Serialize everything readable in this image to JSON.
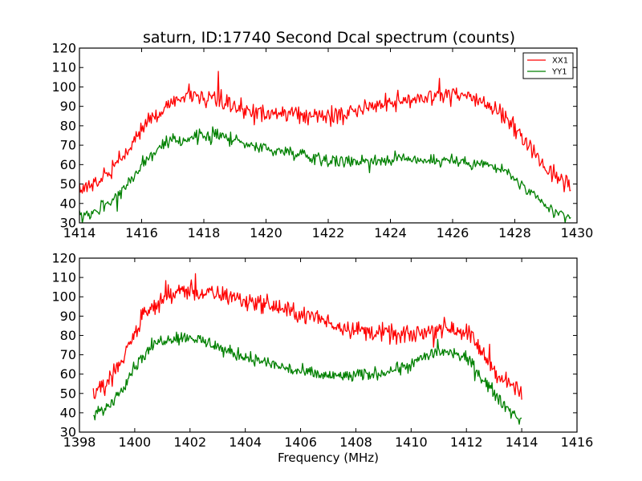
{
  "figure": {
    "title": "saturn, ID:17740 Second Dcal spectrum (counts)"
  },
  "chart_data": [
    {
      "type": "line",
      "title": "saturn, ID:17740 Second Dcal spectrum (counts)",
      "xlabel": "",
      "ylabel": "",
      "xlim": [
        1414,
        1430
      ],
      "ylim": [
        30,
        120
      ],
      "xticks": [
        1414,
        1416,
        1418,
        1420,
        1422,
        1424,
        1426,
        1428,
        1430
      ],
      "yticks": [
        30,
        40,
        50,
        60,
        70,
        80,
        90,
        100,
        110,
        120
      ],
      "legend": {
        "position": "top-right",
        "entries": [
          "XX1",
          "YY1"
        ]
      },
      "grid": false,
      "series": [
        {
          "name": "XX1",
          "color": "#ff0000",
          "x": [
            1414.0,
            1414.5,
            1415.0,
            1415.5,
            1416.0,
            1416.5,
            1417.0,
            1417.5,
            1418.0,
            1418.5,
            1419.0,
            1419.5,
            1420.0,
            1420.5,
            1421.0,
            1421.5,
            1422.0,
            1422.5,
            1423.0,
            1423.5,
            1424.0,
            1424.5,
            1425.0,
            1425.5,
            1426.0,
            1426.5,
            1427.0,
            1427.5,
            1428.0,
            1428.5,
            1429.0,
            1429.5,
            1429.8
          ],
          "y": [
            49,
            51,
            57,
            66,
            78,
            87,
            93,
            96,
            95,
            93,
            90,
            88,
            87,
            86,
            85,
            85,
            84,
            86,
            88,
            91,
            93,
            94,
            94,
            95,
            96,
            95,
            92,
            88,
            79,
            68,
            59,
            52,
            50
          ]
        },
        {
          "name": "YY1",
          "color": "#008000",
          "x": [
            1414.0,
            1414.5,
            1415.0,
            1415.5,
            1416.0,
            1416.5,
            1417.0,
            1417.5,
            1418.0,
            1418.5,
            1419.0,
            1419.5,
            1420.0,
            1420.5,
            1421.0,
            1421.5,
            1422.0,
            1422.5,
            1423.0,
            1423.5,
            1424.0,
            1424.5,
            1425.0,
            1425.5,
            1426.0,
            1426.5,
            1427.0,
            1427.5,
            1428.0,
            1428.5,
            1429.0,
            1429.5,
            1429.8
          ],
          "y": [
            34,
            36,
            41,
            49,
            60,
            68,
            72,
            74,
            75,
            75,
            73,
            70,
            68,
            67,
            66,
            64,
            63,
            62,
            62,
            62,
            63,
            63,
            63,
            62,
            62,
            61,
            60,
            58,
            53,
            45,
            38,
            34,
            33
          ]
        }
      ]
    },
    {
      "type": "line",
      "title": "",
      "xlabel": "Frequency (MHz)",
      "ylabel": "",
      "xlim": [
        1398,
        1416
      ],
      "ylim": [
        30,
        120
      ],
      "xticks": [
        1398,
        1400,
        1402,
        1404,
        1406,
        1408,
        1410,
        1412,
        1414,
        1416
      ],
      "yticks": [
        30,
        40,
        50,
        60,
        70,
        80,
        90,
        100,
        110,
        120
      ],
      "grid": false,
      "series": [
        {
          "color": "#ff0000",
          "x": [
            1398.5,
            1399.0,
            1399.5,
            1400.0,
            1400.5,
            1401.0,
            1401.5,
            1402.0,
            1402.5,
            1403.0,
            1403.5,
            1404.0,
            1404.5,
            1405.0,
            1405.5,
            1406.0,
            1406.5,
            1407.0,
            1407.5,
            1408.0,
            1408.5,
            1409.0,
            1409.5,
            1410.0,
            1410.5,
            1411.0,
            1411.5,
            1412.0,
            1412.5,
            1413.0,
            1413.5,
            1414.0
          ],
          "y": [
            50,
            55,
            66,
            82,
            93,
            99,
            102,
            103,
            102,
            101,
            100,
            98,
            97,
            95,
            93,
            91,
            89,
            87,
            85,
            83,
            82,
            81,
            80,
            80,
            82,
            84,
            84,
            82,
            73,
            62,
            55,
            49
          ]
        },
        {
          "color": "#008000",
          "x": [
            1398.5,
            1399.0,
            1399.5,
            1400.0,
            1400.5,
            1401.0,
            1401.5,
            1402.0,
            1402.5,
            1403.0,
            1403.5,
            1404.0,
            1404.5,
            1405.0,
            1405.5,
            1406.0,
            1406.5,
            1407.0,
            1407.5,
            1408.0,
            1408.5,
            1409.0,
            1409.5,
            1410.0,
            1410.5,
            1411.0,
            1411.5,
            1412.0,
            1412.5,
            1413.0,
            1413.5,
            1414.0
          ],
          "y": [
            38,
            43,
            52,
            64,
            73,
            78,
            79,
            79,
            77,
            74,
            71,
            69,
            67,
            65,
            63,
            61,
            60,
            59,
            59,
            59,
            60,
            61,
            63,
            65,
            69,
            72,
            71,
            68,
            60,
            50,
            42,
            36
          ]
        }
      ]
    }
  ]
}
